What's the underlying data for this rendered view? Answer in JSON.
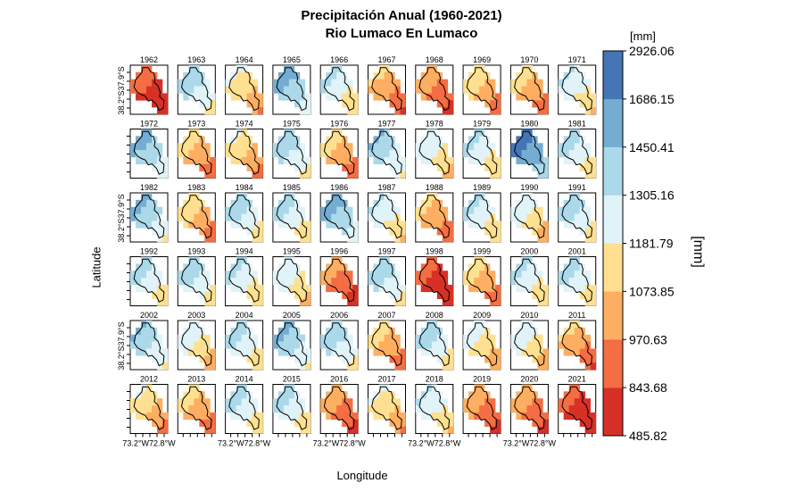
{
  "chart_data": {
    "type": "heatmap",
    "title": "Precipitación Anual (1960-2021)",
    "subtitle": "Rio Lumaco En Lumaco",
    "xlabel": "Longitude",
    "ylabel": "Latitude",
    "x_tick_labels": [
      "73.2°W",
      "72.8°W"
    ],
    "y_tick_labels": [
      "38.2°S",
      "37.9°S"
    ],
    "colorbar": {
      "unit_top": "[mm]",
      "unit_side": "[mm]",
      "breaks": [
        485.82,
        843.68,
        970.63,
        1073.85,
        1181.79,
        1305.16,
        1450.41,
        1686.15,
        2926.06
      ],
      "break_labels": [
        "485.82",
        "843.68",
        "970.63",
        "1073.85",
        "1181.79",
        "1305.16",
        "1450.41",
        "1686.15",
        "2926.06"
      ],
      "colors": [
        "#d73027",
        "#f46d43",
        "#fdae61",
        "#fee090",
        "#e0f3f8",
        "#abd9e9",
        "#74add1",
        "#4575b4"
      ]
    },
    "panels": [
      {
        "year": "1962",
        "wetness": -1.6
      },
      {
        "year": "1963",
        "wetness": 0.6
      },
      {
        "year": "1964",
        "wetness": -0.3
      },
      {
        "year": "1965",
        "wetness": 1.0
      },
      {
        "year": "1966",
        "wetness": 0.3
      },
      {
        "year": "1967",
        "wetness": -0.8
      },
      {
        "year": "1968",
        "wetness": -1.0
      },
      {
        "year": "1969",
        "wetness": -0.5
      },
      {
        "year": "1970",
        "wetness": -0.6
      },
      {
        "year": "1971",
        "wetness": 0.2
      },
      {
        "year": "1972",
        "wetness": 0.9
      },
      {
        "year": "1973",
        "wetness": -0.6
      },
      {
        "year": "1974",
        "wetness": -0.4
      },
      {
        "year": "1975",
        "wetness": 0.6
      },
      {
        "year": "1976",
        "wetness": -0.6
      },
      {
        "year": "1977",
        "wetness": 0.7
      },
      {
        "year": "1978",
        "wetness": 0.1
      },
      {
        "year": "1979",
        "wetness": 0.3
      },
      {
        "year": "1980",
        "wetness": 1.5
      },
      {
        "year": "1981",
        "wetness": 0.4
      },
      {
        "year": "1982",
        "wetness": 0.8
      },
      {
        "year": "1983",
        "wetness": -0.5
      },
      {
        "year": "1984",
        "wetness": 0.5
      },
      {
        "year": "1985",
        "wetness": 0.4
      },
      {
        "year": "1986",
        "wetness": 1.0
      },
      {
        "year": "1987",
        "wetness": 0.2
      },
      {
        "year": "1988",
        "wetness": -0.7
      },
      {
        "year": "1989",
        "wetness": 0.3
      },
      {
        "year": "1990",
        "wetness": 0.0
      },
      {
        "year": "1991",
        "wetness": 0.5
      },
      {
        "year": "1992",
        "wetness": 0.4
      },
      {
        "year": "1993",
        "wetness": 0.5
      },
      {
        "year": "1994",
        "wetness": 0.3
      },
      {
        "year": "1995",
        "wetness": 0.1
      },
      {
        "year": "1996",
        "wetness": -1.1
      },
      {
        "year": "1997",
        "wetness": 0.6
      },
      {
        "year": "1998",
        "wetness": -1.7
      },
      {
        "year": "1999",
        "wetness": -0.6
      },
      {
        "year": "2000",
        "wetness": 0.3
      },
      {
        "year": "2001",
        "wetness": 0.4
      },
      {
        "year": "2002",
        "wetness": 0.7
      },
      {
        "year": "2003",
        "wetness": 0.0
      },
      {
        "year": "2004",
        "wetness": 0.4
      },
      {
        "year": "2005",
        "wetness": 0.8
      },
      {
        "year": "2006",
        "wetness": 0.6
      },
      {
        "year": "2007",
        "wetness": -0.6
      },
      {
        "year": "2008",
        "wetness": 0.5
      },
      {
        "year": "2009",
        "wetness": -0.1
      },
      {
        "year": "2010",
        "wetness": 0.0
      },
      {
        "year": "2011",
        "wetness": -0.8
      },
      {
        "year": "2012",
        "wetness": -0.4
      },
      {
        "year": "2013",
        "wetness": -0.6
      },
      {
        "year": "2014",
        "wetness": 0.4
      },
      {
        "year": "2015",
        "wetness": 0.4
      },
      {
        "year": "2016",
        "wetness": -1.0
      },
      {
        "year": "2017",
        "wetness": -0.3
      },
      {
        "year": "2018",
        "wetness": 0.2
      },
      {
        "year": "2019",
        "wetness": -1.0
      },
      {
        "year": "2020",
        "wetness": -1.0
      },
      {
        "year": "2021",
        "wetness": -1.7
      }
    ]
  }
}
